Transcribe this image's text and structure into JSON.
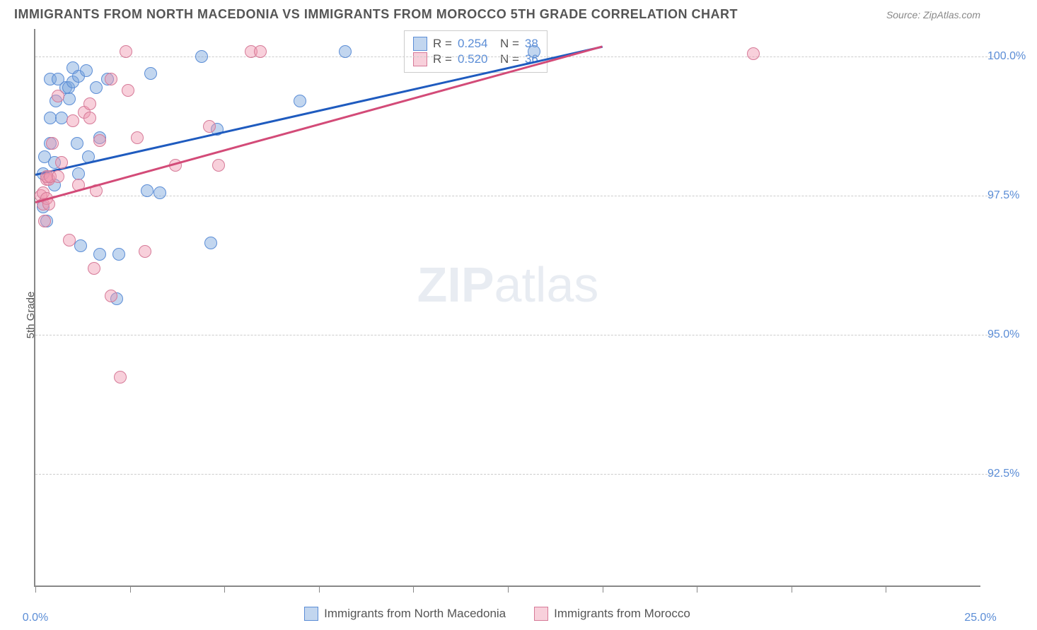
{
  "title": "IMMIGRANTS FROM NORTH MACEDONIA VS IMMIGRANTS FROM MOROCCO 5TH GRADE CORRELATION CHART",
  "source": "Source: ZipAtlas.com",
  "ylabel": "5th Grade",
  "watermark_bold": "ZIP",
  "watermark_light": "atlas",
  "chart": {
    "type": "scatter",
    "xlim": [
      0,
      25
    ],
    "ylim": [
      90.5,
      100.5
    ],
    "x_ticks": [
      0,
      2.5,
      5,
      7.5,
      10,
      12.5,
      15,
      17.5,
      20,
      22.5
    ],
    "x_tick_labels": {
      "0": "0.0%",
      "25": "25.0%"
    },
    "y_gridlines": [
      92.5,
      95.0,
      97.5,
      100.0
    ],
    "y_tick_labels": [
      "92.5%",
      "95.0%",
      "97.5%",
      "100.0%"
    ],
    "grid_color": "#cccccc",
    "background_color": "#ffffff",
    "point_radius": 9,
    "series": [
      {
        "name": "Immigrants from North Macedonia",
        "fill": "rgba(120,165,220,0.45)",
        "stroke": "#5b8dd6",
        "trend_color": "#1f5bbf",
        "R": "0.254",
        "N": "38",
        "trend": {
          "x1": 0,
          "y1": 97.9,
          "x2": 15,
          "y2": 100.2
        },
        "points": [
          [
            0.2,
            97.3
          ],
          [
            0.2,
            97.9
          ],
          [
            0.3,
            97.05
          ],
          [
            0.25,
            98.2
          ],
          [
            0.4,
            98.45
          ],
          [
            0.4,
            98.9
          ],
          [
            0.4,
            99.6
          ],
          [
            0.5,
            97.7
          ],
          [
            0.5,
            98.1
          ],
          [
            0.55,
            99.2
          ],
          [
            0.6,
            99.6
          ],
          [
            0.7,
            98.9
          ],
          [
            0.8,
            99.45
          ],
          [
            0.88,
            99.45
          ],
          [
            0.9,
            99.25
          ],
          [
            1.0,
            99.8
          ],
          [
            1.0,
            99.55
          ],
          [
            1.15,
            99.65
          ],
          [
            1.1,
            98.45
          ],
          [
            1.15,
            97.9
          ],
          [
            1.35,
            99.75
          ],
          [
            1.2,
            96.6
          ],
          [
            1.4,
            98.2
          ],
          [
            1.6,
            99.45
          ],
          [
            1.7,
            98.55
          ],
          [
            1.7,
            96.45
          ],
          [
            1.9,
            99.6
          ],
          [
            2.15,
            95.65
          ],
          [
            2.2,
            96.45
          ],
          [
            2.95,
            97.6
          ],
          [
            3.05,
            99.7
          ],
          [
            3.3,
            97.55
          ],
          [
            4.4,
            100.0
          ],
          [
            4.65,
            96.65
          ],
          [
            4.8,
            98.7
          ],
          [
            7.0,
            99.2
          ],
          [
            8.2,
            100.1
          ],
          [
            13.2,
            100.1
          ]
        ]
      },
      {
        "name": "Immigrants from Morocco",
        "fill": "rgba(240,150,175,0.45)",
        "stroke": "#d67a98",
        "trend_color": "#d34b78",
        "R": "0.520",
        "N": "36",
        "trend": {
          "x1": 0,
          "y1": 97.4,
          "x2": 15,
          "y2": 100.2
        },
        "points": [
          [
            0.15,
            97.5
          ],
          [
            0.2,
            97.35
          ],
          [
            0.2,
            97.55
          ],
          [
            0.3,
            97.8
          ],
          [
            0.35,
            97.8
          ],
          [
            0.3,
            97.45
          ],
          [
            0.35,
            97.35
          ],
          [
            0.25,
            97.05
          ],
          [
            0.3,
            97.85
          ],
          [
            0.45,
            98.45
          ],
          [
            0.4,
            97.85
          ],
          [
            0.6,
            97.85
          ],
          [
            0.7,
            98.1
          ],
          [
            0.6,
            99.3
          ],
          [
            0.9,
            96.7
          ],
          [
            1.0,
            98.85
          ],
          [
            1.15,
            97.7
          ],
          [
            1.3,
            99.0
          ],
          [
            1.45,
            98.9
          ],
          [
            1.45,
            99.15
          ],
          [
            1.55,
            96.2
          ],
          [
            1.6,
            97.6
          ],
          [
            1.7,
            98.5
          ],
          [
            2.0,
            99.6
          ],
          [
            2.0,
            95.7
          ],
          [
            2.25,
            94.25
          ],
          [
            2.4,
            100.1
          ],
          [
            2.45,
            99.4
          ],
          [
            2.7,
            98.55
          ],
          [
            2.9,
            96.5
          ],
          [
            3.7,
            98.05
          ],
          [
            4.6,
            98.75
          ],
          [
            4.85,
            98.05
          ],
          [
            5.7,
            100.1
          ],
          [
            5.95,
            100.1
          ],
          [
            19.0,
            100.05
          ]
        ]
      }
    ]
  },
  "bottom_legend": [
    {
      "label": "Immigrants from North Macedonia",
      "fill": "rgba(120,165,220,0.45)",
      "stroke": "#5b8dd6"
    },
    {
      "label": "Immigrants from Morocco",
      "fill": "rgba(240,150,175,0.45)",
      "stroke": "#d67a98"
    }
  ]
}
